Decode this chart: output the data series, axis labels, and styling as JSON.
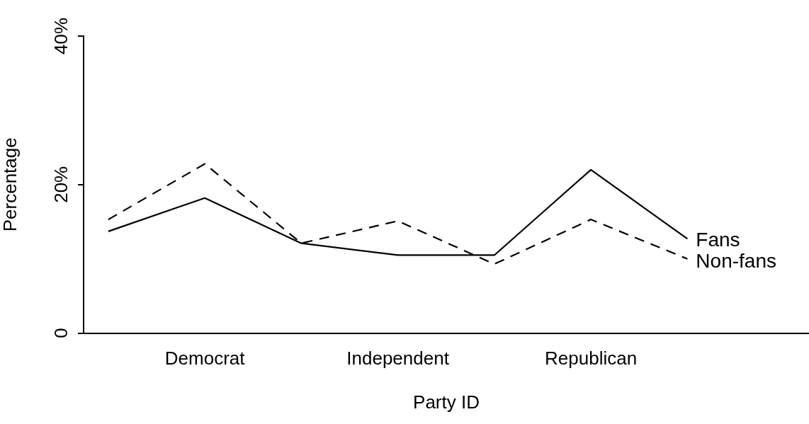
{
  "chart_data": {
    "type": "line",
    "xlabel": "Party ID",
    "ylabel": "Percentage",
    "categories": [
      null,
      "Democrat",
      null,
      "Independent",
      null,
      "Republican",
      null
    ],
    "ylim": [
      0,
      40
    ],
    "yticks": [
      0,
      {
        "value": 20,
        "label": "20%"
      },
      {
        "value": 40,
        "label": "40%"
      }
    ],
    "grid": false,
    "legend": false,
    "marker": "none",
    "series": [
      {
        "name": "Fans",
        "color": "#000000",
        "line_style": "solid",
        "values": [
          13.7,
          18.2,
          12.1,
          10.5,
          10.5,
          22.0,
          12.7
        ]
      },
      {
        "name": "Non-fans",
        "color": "#000000",
        "line_style": "dashed",
        "values": [
          15.3,
          22.8,
          12.1,
          15.1,
          9.3,
          15.3,
          10.0
        ]
      }
    ]
  }
}
